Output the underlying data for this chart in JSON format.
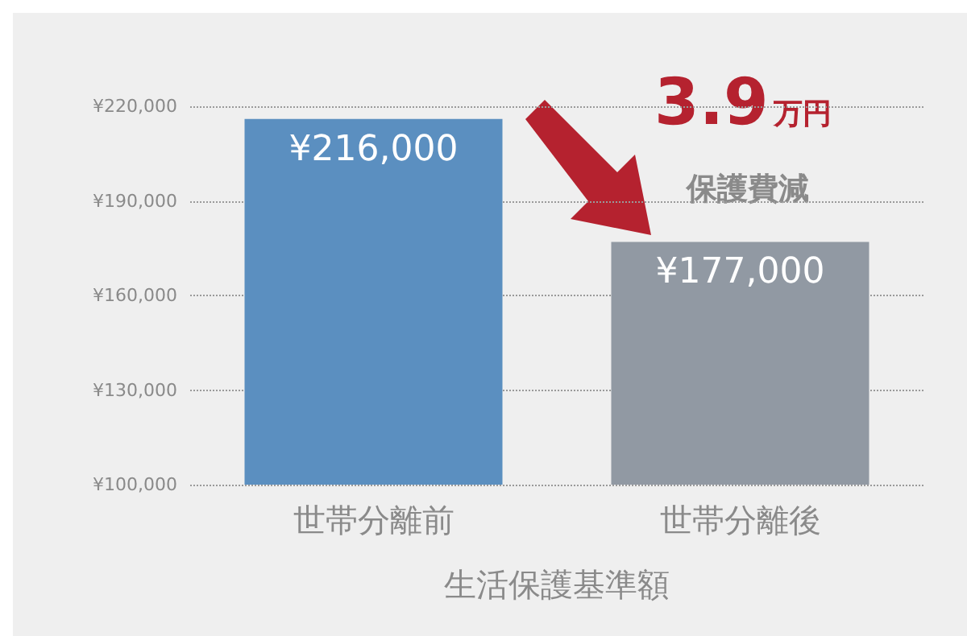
{
  "chart_data": {
    "type": "bar",
    "categories": [
      "世帯分離前",
      "世帯分離後"
    ],
    "values": [
      216000,
      177000
    ],
    "colors": [
      "#5b8fc0",
      "#9199a3"
    ],
    "value_labels": [
      "¥216,000",
      "¥177,000"
    ],
    "xlabel": "生活保護基準額",
    "ylim": [
      100000,
      220000
    ],
    "yticks": [
      {
        "value": 100000,
        "label": "¥100,000"
      },
      {
        "value": 130000,
        "label": "¥130,000"
      },
      {
        "value": 160000,
        "label": "¥160,000"
      },
      {
        "value": 190000,
        "label": "¥190,000"
      },
      {
        "value": 220000,
        "label": "¥220,000"
      }
    ],
    "grid": "y",
    "annotations": [
      "3.9万円",
      "保護費減"
    ]
  }
}
